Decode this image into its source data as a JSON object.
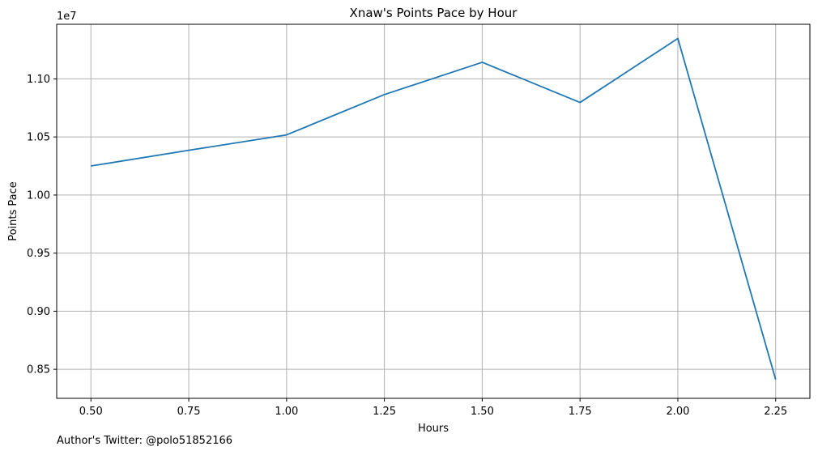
{
  "chart_data": {
    "type": "line",
    "title": "Xnaw's Points Pace by Hour",
    "xlabel": "Hours",
    "ylabel": "Points Pace",
    "offset_label": "1e7",
    "x": [
      0.5,
      0.75,
      1.0,
      1.25,
      1.5,
      1.75,
      2.0,
      2.25
    ],
    "series": [
      {
        "values": [
          10250000,
          10385000,
          10518000,
          10865000,
          11143000,
          10797000,
          11348000,
          8412000
        ],
        "color": "#1f77b4"
      }
    ],
    "xlim": [
      0.4125,
      2.3375
    ],
    "ylim": [
      8250000,
      11470000
    ],
    "xticks": [
      0.5,
      0.75,
      1.0,
      1.25,
      1.5,
      1.75,
      2.0,
      2.25
    ],
    "xtick_labels": [
      "0.50",
      "0.75",
      "1.00",
      "1.25",
      "1.50",
      "1.75",
      "2.00",
      "2.25"
    ],
    "yticks": [
      8500000,
      9000000,
      9500000,
      10000000,
      10500000,
      11000000
    ],
    "ytick_labels": [
      "0.85",
      "0.90",
      "0.95",
      "1.00",
      "1.05",
      "1.10"
    ],
    "grid": true,
    "grid_color": "#b0b0b0"
  },
  "footer": {
    "text": "Author's Twitter: @polo51852166"
  }
}
